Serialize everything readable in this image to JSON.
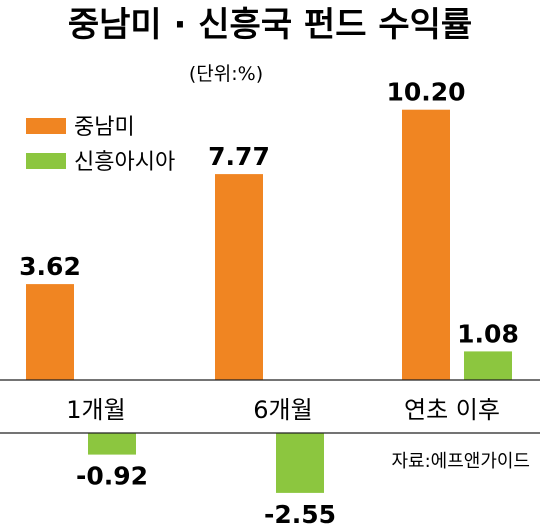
{
  "chart_data": {
    "type": "bar",
    "title": "중남미 · 신흥국 펀드 수익률",
    "unit_label": "(단위:%)",
    "categories": [
      "1개월",
      "6개월",
      "연초 이후"
    ],
    "series": [
      {
        "name": "중남미",
        "color": "#f08522",
        "values": [
          3.62,
          7.77,
          10.2
        ],
        "labels": [
          "3.62",
          "7.77",
          "10.20"
        ]
      },
      {
        "name": "신흥아시아",
        "color": "#8cc63f",
        "values": [
          -0.92,
          -2.55,
          1.08
        ],
        "labels": [
          "-0.92",
          "-2.55",
          "1.08"
        ]
      }
    ],
    "source": "자료:에프앤가이드",
    "legend_position": "top-left",
    "grid": false
  }
}
